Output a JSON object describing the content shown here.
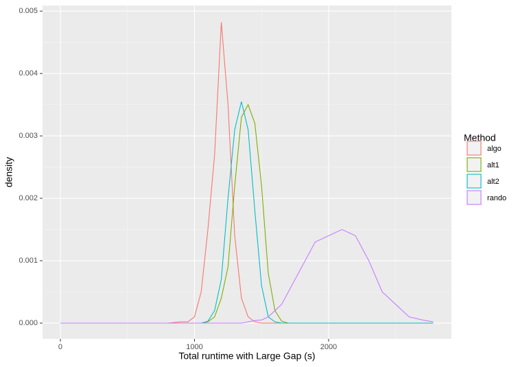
{
  "chart_data": {
    "type": "line",
    "xlabel": "Total runtime with Large Gap (s)",
    "ylabel": "density",
    "legend_title": "Method",
    "legend_position": "right",
    "grid": true,
    "xlim": [
      -133,
      2916
    ],
    "ylim": [
      -0.000253,
      0.00509
    ],
    "xticks": [
      0,
      1000,
      2000
    ],
    "minor_xticks": [
      500,
      1500,
      2500
    ],
    "yticks": [
      {
        "value": 0,
        "label": "0.000"
      },
      {
        "value": 0.001,
        "label": "0.001"
      },
      {
        "value": 0.002,
        "label": "0.002"
      },
      {
        "value": 0.003,
        "label": "0.003"
      },
      {
        "value": 0.004,
        "label": "0.004"
      },
      {
        "value": 0.005,
        "label": "0.005"
      }
    ],
    "minor_yticks": [
      0.0005,
      0.0015,
      0.0025,
      0.0035,
      0.0045
    ],
    "x": [
      0,
      500,
      800,
      900,
      950,
      1000,
      1050,
      1100,
      1150,
      1200,
      1250,
      1300,
      1350,
      1400,
      1450,
      1500,
      1550,
      1600,
      1650,
      1700,
      1800,
      1900,
      2000,
      2100,
      2200,
      2300,
      2400,
      2500,
      2600,
      2700,
      2780
    ],
    "series": [
      {
        "name": "algo",
        "color": "#F8766D",
        "values": [
          0,
          0,
          0,
          2e-05,
          2e-05,
          0.0001,
          0.0005,
          0.0015,
          0.0027,
          0.00482,
          0.0035,
          0.0014,
          0.0004,
          0.0001,
          2e-05,
          0,
          0,
          0,
          0,
          0,
          0,
          0,
          0,
          0,
          0,
          0,
          0,
          0,
          0,
          0,
          0
        ]
      },
      {
        "name": "alt1",
        "color": "#7CAE00",
        "values": [
          0,
          0,
          0,
          0,
          0,
          0,
          0,
          2e-05,
          0.0001,
          0.0004,
          0.0009,
          0.0022,
          0.0033,
          0.0035,
          0.0032,
          0.0022,
          0.0008,
          0.0002,
          3e-05,
          0,
          0,
          0,
          0,
          0,
          0,
          0,
          0,
          0,
          0,
          0,
          0
        ]
      },
      {
        "name": "alt2",
        "color": "#00BFC4",
        "values": [
          0,
          0,
          0,
          0,
          0,
          0,
          0,
          3e-05,
          0.0002,
          0.0007,
          0.002,
          0.0031,
          0.00355,
          0.0031,
          0.0018,
          0.0006,
          0.0001,
          2e-05,
          0,
          0,
          0,
          0,
          0,
          0,
          0,
          0,
          0,
          0,
          0,
          0,
          0
        ]
      },
      {
        "name": "rando",
        "color": "#C77CFF",
        "values": [
          0,
          0,
          0,
          0,
          0,
          0,
          0,
          0,
          0,
          0,
          0,
          0,
          0,
          2e-05,
          4e-05,
          5e-05,
          0.0001,
          0.0002,
          0.0003,
          0.0005,
          0.0009,
          0.0013,
          0.0014,
          0.0015,
          0.0014,
          0.001,
          0.0005,
          0.0003,
          0.0001,
          5e-05,
          2e-05
        ]
      }
    ]
  }
}
